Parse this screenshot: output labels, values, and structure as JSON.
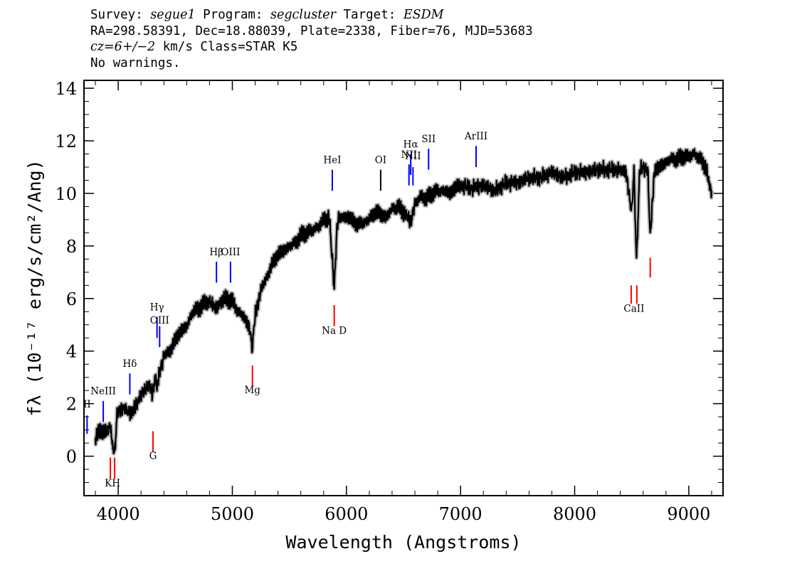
{
  "header": {
    "line1": {
      "survey_label": "Survey:",
      "survey": "segue1",
      "program_label": "Program:",
      "program": "segcluster",
      "target_label": "Target:",
      "target": "ESDM"
    },
    "line2": "RA=298.58391, Dec=18.88039, Plate=2338, Fiber=76, MJD=53683",
    "line3": {
      "redshift": "cz=6+/−2",
      "unit": " km/s",
      "class_text": " Class=STAR K5"
    },
    "line4": "No warnings."
  },
  "chart_data": {
    "type": "line",
    "xlabel": "Wavelength (Angstroms)",
    "ylabel": "fλ (10⁻¹⁷ erg/s/cm²/Ang)",
    "xlim": [
      3700,
      9300
    ],
    "ylim": [
      -1.5,
      14.3
    ],
    "xticks": [
      4000,
      5000,
      6000,
      7000,
      8000,
      9000
    ],
    "yticks": [
      0,
      2,
      4,
      6,
      8,
      10,
      12,
      14
    ],
    "series": [
      {
        "style": "flux",
        "color": "#000000",
        "error_color": "#b8b8b8",
        "x": [
          3800,
          3850,
          3900,
          3930,
          3950,
          3968,
          3990,
          4030,
          4060,
          4080,
          4101,
          4130,
          4160,
          4190,
          4230,
          4270,
          4300,
          4330,
          4340,
          4360,
          4400,
          4450,
          4500,
          4550,
          4600,
          4650,
          4700,
          4750,
          4800,
          4861,
          4900,
          4950,
          5000,
          5050,
          5100,
          5150,
          5175,
          5200,
          5250,
          5300,
          5350,
          5400,
          5450,
          5500,
          5550,
          5600,
          5650,
          5700,
          5750,
          5800,
          5850,
          5893,
          5920,
          5950,
          6000,
          6050,
          6100,
          6150,
          6200,
          6250,
          6300,
          6350,
          6400,
          6450,
          6500,
          6563,
          6600,
          6650,
          6700,
          6750,
          6800,
          6850,
          6900,
          6950,
          7000,
          7100,
          7200,
          7300,
          7400,
          7500,
          7600,
          7700,
          7800,
          7900,
          8000,
          8100,
          8200,
          8300,
          8400,
          8450,
          8498,
          8520,
          8542,
          8570,
          8600,
          8640,
          8662,
          8700,
          8750,
          8800,
          8850,
          8900,
          8950,
          9000,
          9050,
          9100,
          9150,
          9180,
          9200
        ],
        "y": [
          0.7,
          1.0,
          0.9,
          1.2,
          0.4,
          0.1,
          1.6,
          1.8,
          1.9,
          1.7,
          1.6,
          1.8,
          1.9,
          2.3,
          2.5,
          2.7,
          2.4,
          3.1,
          2.6,
          3.2,
          3.8,
          4.0,
          4.4,
          4.8,
          4.9,
          5.5,
          5.6,
          5.8,
          5.9,
          5.6,
          5.9,
          6.0,
          5.9,
          5.5,
          5.3,
          4.9,
          4.1,
          5.4,
          6.3,
          6.8,
          7.3,
          7.7,
          7.8,
          8.0,
          8.1,
          8.4,
          8.5,
          8.6,
          8.7,
          9.0,
          9.1,
          6.4,
          8.9,
          9.1,
          9.1,
          9.0,
          8.8,
          8.9,
          9.0,
          9.3,
          9.2,
          9.1,
          9.4,
          9.5,
          9.3,
          8.9,
          9.6,
          9.9,
          9.8,
          10.0,
          10.1,
          10.1,
          10.0,
          10.2,
          10.3,
          10.2,
          10.3,
          10.1,
          10.4,
          10.4,
          10.6,
          10.6,
          10.8,
          10.6,
          10.8,
          10.8,
          10.9,
          10.9,
          10.9,
          10.8,
          9.3,
          10.8,
          7.4,
          10.9,
          11.0,
          10.9,
          8.4,
          10.9,
          11.0,
          11.2,
          11.3,
          11.3,
          11.4,
          11.4,
          11.5,
          11.3,
          11.0,
          10.3,
          10.1
        ]
      }
    ],
    "line_markers": [
      {
        "label": "KH",
        "x": 3950,
        "color": "#ff0000",
        "y_top": -0.05,
        "y_bot": -0.85,
        "label_y": -1.15
      },
      {
        "label": "G",
        "x": 4305,
        "color": "#ff0000",
        "y_top": 0.95,
        "y_bot": 0.15,
        "label_y": -0.1
      },
      {
        "label": "Mg",
        "x": 5176,
        "color": "#ff0000",
        "y_top": 3.45,
        "y_bot": 2.65,
        "label_y": 2.4
      },
      {
        "label": "Na D",
        "x": 5893,
        "color": "#ff0000",
        "y_top": 5.75,
        "y_bot": 4.95,
        "label_y": 4.65
      },
      {
        "label": "CaII",
        "x": 8520,
        "color": "#ff0000",
        "y_top": 6.5,
        "y_bot": 5.8,
        "label_y": 5.5
      },
      {
        "label": "",
        "x": 8662,
        "color": "#ff0000",
        "y_top": 7.55,
        "y_bot": 6.8,
        "label_y": 6.8
      },
      {
        "label": "II",
        "x": 3727,
        "color": "#0000ff",
        "y_top": 1.55,
        "y_bot": 0.85,
        "label_y": 1.85
      },
      {
        "label": "NeIII",
        "x": 3869,
        "color": "#0000ff",
        "y_top": 2.1,
        "y_bot": 1.3,
        "label_y": 2.35
      },
      {
        "label": "Hδ",
        "x": 4102,
        "color": "#0000ff",
        "y_top": 3.15,
        "y_bot": 2.35,
        "label_y": 3.4
      },
      {
        "label": "Hγ",
        "x": 4340,
        "color": "#0000ff",
        "y_top": 5.3,
        "y_bot": 4.5,
        "label_y": 5.55
      },
      {
        "label": "OIII",
        "x": 4363,
        "color": "#0000ff",
        "y_top": 4.95,
        "y_bot": 4.15,
        "label_y": 5.05
      },
      {
        "label": "Hβ",
        "x": 4861,
        "color": "#0000ff",
        "y_top": 7.4,
        "y_bot": 6.6,
        "label_y": 7.65
      },
      {
        "label": "OIII",
        "x": 4984,
        "color": "#0000ff",
        "y_top": 7.4,
        "y_bot": 6.6,
        "label_y": 7.65
      },
      {
        "label": "HeI",
        "x": 5876,
        "color": "#0000ff",
        "y_top": 10.9,
        "y_bot": 10.1,
        "label_y": 11.15
      },
      {
        "label": "OI",
        "x": 6300,
        "color": "#000000",
        "y_top": 10.9,
        "y_bot": 10.1,
        "label_y": 11.15
      },
      {
        "label": "NII",
        "x": 6548,
        "color": "#0000ff",
        "y_top": 11.1,
        "y_bot": 10.3,
        "label_y": 11.35
      },
      {
        "label": "Hα",
        "x": 6563,
        "color": "#0000ff",
        "y_top": 11.5,
        "y_bot": 10.7,
        "label_y": 11.75
      },
      {
        "label": "NII",
        "x": 6583,
        "color": "#0000ff",
        "y_top": 11.0,
        "y_bot": 10.3,
        "label_y": 11.3
      },
      {
        "label": "SII",
        "x": 6720,
        "color": "#0000ff",
        "y_top": 11.7,
        "y_bot": 10.9,
        "label_y": 11.95
      },
      {
        "label": "ArIII",
        "x": 7136,
        "color": "#0000ff",
        "y_top": 11.8,
        "y_bot": 11.0,
        "label_y": 12.05
      }
    ]
  }
}
